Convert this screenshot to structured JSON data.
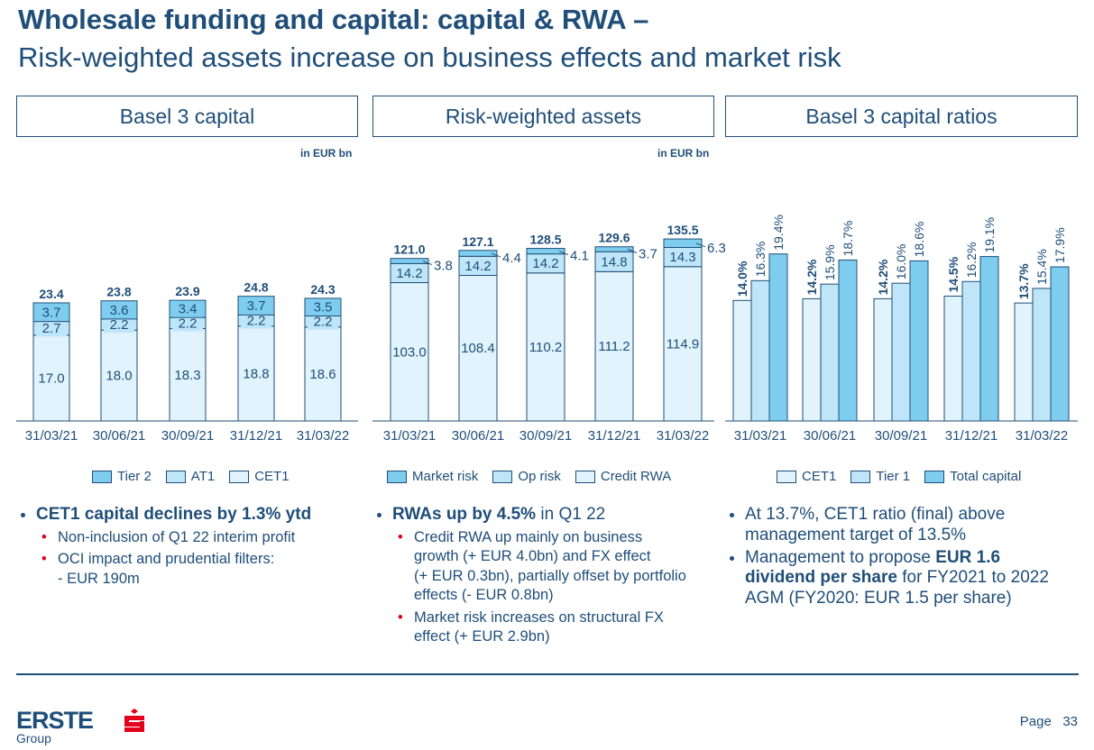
{
  "title": {
    "line1": "Wholesale funding and capital: capital & RWA –",
    "line2": "Risk-weighted assets increase on business effects and market risk"
  },
  "panels": {
    "capital": {
      "header": "Basel 3 capital",
      "unit": "in EUR bn"
    },
    "rwa": {
      "header": "Risk-weighted assets",
      "unit": "in EUR bn"
    },
    "ratios": {
      "header": "Basel 3 capital ratios"
    }
  },
  "colors": {
    "dark": "#7fcdee",
    "mid": "#bfe6f8",
    "light": "#e1f3fc",
    "border": "#1f4e79"
  },
  "chart_data": [
    {
      "type": "bar",
      "stacked": true,
      "categories": [
        "31/03/21",
        "30/06/21",
        "30/09/21",
        "31/12/21",
        "31/03/22"
      ],
      "series": [
        {
          "name": "CET1",
          "values": [
            17.0,
            18.0,
            18.3,
            18.8,
            18.6
          ]
        },
        {
          "name": "AT1",
          "values": [
            2.7,
            2.2,
            2.2,
            2.2,
            2.2
          ]
        },
        {
          "name": "Tier 2",
          "values": [
            3.7,
            3.6,
            3.4,
            3.7,
            3.5
          ]
        }
      ],
      "value_labels": [
        [
          "17.0",
          "18.0",
          "18.3",
          "18.8",
          "18.6"
        ],
        [
          "2.7",
          "2.2",
          "2.2",
          "2.2",
          "2.2"
        ],
        [
          "3.7",
          "3.6",
          "3.4",
          "3.7",
          "3.5"
        ]
      ],
      "totals": [
        "23.4",
        "23.8",
        "23.9",
        "24.8",
        "24.3"
      ],
      "legend": [
        "Tier 2",
        "AT1",
        "CET1"
      ],
      "ylim": [
        0,
        30
      ]
    },
    {
      "type": "bar",
      "stacked": true,
      "categories": [
        "31/03/21",
        "30/06/21",
        "30/09/21",
        "31/12/21",
        "31/03/22"
      ],
      "series": [
        {
          "name": "Credit RWA",
          "values": [
            103.0,
            108.4,
            110.2,
            111.2,
            114.9
          ]
        },
        {
          "name": "Op risk",
          "values": [
            14.2,
            14.2,
            14.2,
            14.8,
            14.3
          ]
        },
        {
          "name": "Market risk",
          "values": [
            3.8,
            4.4,
            4.1,
            3.7,
            6.3
          ]
        }
      ],
      "value_labels": [
        [
          "103.0",
          "108.4",
          "110.2",
          "111.2",
          "114.9"
        ],
        [
          "14.2",
          "14.2",
          "14.2",
          "14.8",
          "14.3"
        ],
        [
          "3.8",
          "4.4",
          "4.1",
          "3.7",
          "6.3"
        ]
      ],
      "totals": [
        "121.0",
        "127.1",
        "128.5",
        "129.6",
        "135.5"
      ],
      "legend": [
        "Market risk",
        "Op risk",
        "Credit RWA"
      ],
      "ylim": [
        0,
        170
      ]
    },
    {
      "type": "bar",
      "grouped": true,
      "categories": [
        "31/03/21",
        "30/06/21",
        "30/09/21",
        "31/12/21",
        "31/03/22"
      ],
      "series": [
        {
          "name": "CET1",
          "values": [
            14.0,
            14.2,
            14.2,
            14.5,
            13.7
          ]
        },
        {
          "name": "Tier 1",
          "values": [
            16.3,
            15.9,
            16.0,
            16.2,
            15.4
          ]
        },
        {
          "name": "Total capital",
          "values": [
            19.4,
            18.7,
            18.6,
            19.1,
            17.9
          ]
        }
      ],
      "value_labels": [
        [
          "14.0%",
          "14.2%",
          "14.2%",
          "14.5%",
          "13.7%"
        ],
        [
          "16.3%",
          "15.9%",
          "16.0%",
          "16.2%",
          "15.4%"
        ],
        [
          "19.4%",
          "18.7%",
          "18.6%",
          "19.1%",
          "17.9%"
        ]
      ],
      "legend": [
        "CET1",
        "Tier 1",
        "Total capital"
      ],
      "ylim": [
        0,
        30.5
      ]
    }
  ],
  "bullets": {
    "capital": {
      "main_bold": "CET1 capital declines by 1.3% ytd",
      "subs": [
        "Non-inclusion of Q1 22 interim profit",
        "OCI impact and prudential filters:",
        "- EUR 190m"
      ]
    },
    "rwa": {
      "main_bold": "RWAs up by 4.5%",
      "main_rest": " in Q1 22",
      "subs": [
        "Credit RWA up mainly on business",
        "growth (+ EUR 4.0bn) and FX effect",
        "(+ EUR 0.3bn), partially offset by portfolio",
        "effects (- EUR 0.8bn)",
        "Market risk increases on structural FX",
        "effect (+ EUR 2.9bn)"
      ]
    },
    "ratios": {
      "b1_line1": "At 13.7%, CET1 ratio (final) above",
      "b1_line2": "management target of 13.5%",
      "b2_pre": "Management to propose ",
      "b2_bold1": "EUR 1.6",
      "b2_bold2": "dividend per share",
      "b2_mid": " for FY2021 to 2022",
      "b2_line3": "AGM (FY2020: EUR 1.5 per share)"
    }
  },
  "footer": {
    "logo": "ERSTE",
    "logo_sub": "Group",
    "page_label": "Page",
    "page_number": "33"
  }
}
